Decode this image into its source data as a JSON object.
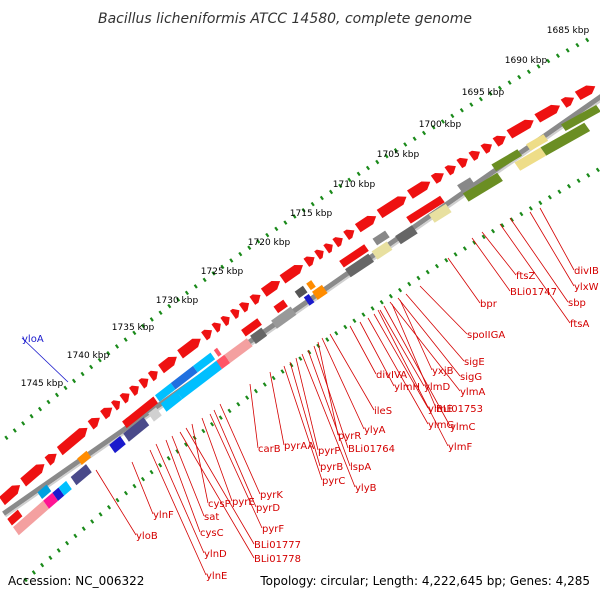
{
  "title": "Bacillus licheniformis ATCC 14580, complete genome",
  "footer": {
    "accession": "Accession: NC_006322",
    "summary": "Topology: circular; Length: 4,222,645 bp; Genes: 4,285"
  },
  "colors": {
    "feature_red": "#ee1111",
    "label_red": "#d40000",
    "label_blue": "#1a1acc",
    "tick_green": "#1a8a1a",
    "backbone": "#888888"
  },
  "ticks": [
    "1685 kbp",
    "1690 kbp",
    "1695 kbp",
    "1700 kbp",
    "1705 kbp",
    "1710 kbp",
    "1715 kbp",
    "1720 kbp",
    "1725 kbp",
    "1730 kbp",
    "1735 kbp",
    "1740 kbp",
    "1745 kbp"
  ],
  "genes": [
    "divIB",
    "ylxW",
    "sbp",
    "ftsA",
    "ftsZ",
    "BLi01747",
    "bpr",
    "spoIIGA",
    "sigE",
    "sigG",
    "ylmA",
    "ylmC",
    "ylmF",
    "yxjB",
    "BLi01753",
    "ylmD",
    "ylmE",
    "ylmG",
    "ylmH",
    "divIVA",
    "ileS",
    "ylyA",
    "pyrR",
    "BLi01764",
    "lspA",
    "ylyB",
    "pyrP",
    "pyrB",
    "pyrC",
    "pyrAA",
    "carB",
    "pyrK",
    "pyrD",
    "pyrF",
    "pyrE",
    "cysP",
    "BLi01777",
    "BLi01778",
    "sat",
    "cysC",
    "ylnD",
    "ylnE",
    "ylnF",
    "yloB",
    "yloA"
  ]
}
